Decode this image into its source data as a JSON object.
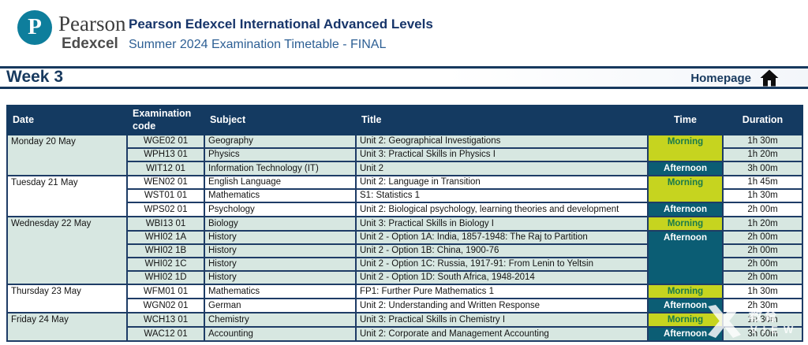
{
  "brand": {
    "name": "Pearson",
    "sub": "Edexcel",
    "monogram": "P"
  },
  "header": {
    "title": "Pearson Edexcel International Advanced Levels",
    "subtitle": "Summer 2024 Examination Timetable - FINAL"
  },
  "nav": {
    "week": "Week 3",
    "homepage": "Homepage"
  },
  "table": {
    "headers": [
      "Date",
      "Examination code",
      "Subject",
      "Title",
      "Time",
      "Duration"
    ],
    "days": [
      {
        "date": "Monday 20 May",
        "shade": "green",
        "rows": [
          {
            "code": "WGE02 01",
            "subject": "Geography",
            "title": "Unit 2: Geographical Investigations",
            "time": "Morning",
            "time_span": 2,
            "duration": "1h 30m"
          },
          {
            "code": "WPH13 01",
            "subject": "Physics",
            "title": "Unit 3: Practical Skills in Physics I",
            "duration": "1h 20m"
          },
          {
            "code": "WIT12 01",
            "subject": "Information Technology (IT)",
            "title": "Unit 2",
            "time": "Afternoon",
            "time_span": 1,
            "duration": "3h 00m"
          }
        ]
      },
      {
        "date": "Tuesday 21 May",
        "shade": "white",
        "rows": [
          {
            "code": "WEN02 01",
            "subject": "English Language",
            "title": "Unit 2: Language in Transition",
            "time": "Morning",
            "time_span": 2,
            "duration": "1h 45m"
          },
          {
            "code": "WST01 01",
            "subject": "Mathematics",
            "title": "S1: Statistics 1",
            "duration": "1h 30m"
          },
          {
            "code": "WPS02 01",
            "subject": "Psychology",
            "title": "Unit 2: Biological psychology, learning theories and development",
            "time": "Afternoon",
            "time_span": 1,
            "duration": "2h 00m"
          }
        ]
      },
      {
        "date": "Wednesday 22 May",
        "shade": "green",
        "rows": [
          {
            "code": "WBI13 01",
            "subject": "Biology",
            "title": "Unit 3: Practical Skills in Biology I",
            "time": "Morning",
            "time_span": 1,
            "duration": "1h 20m"
          },
          {
            "code": "WHI02 1A",
            "subject": "History",
            "title": "Unit 2 - Option 1A: India, 1857-1948: The Raj to Partition",
            "time": "Afternoon",
            "time_span": 4,
            "duration": "2h 00m"
          },
          {
            "code": "WHI02 1B",
            "subject": "History",
            "title": "Unit 2 - Option 1B: China, 1900-76",
            "duration": "2h 00m"
          },
          {
            "code": "WHI02 1C",
            "subject": "History",
            "title": "Unit 2 - Option 1C: Russia, 1917-91: From Lenin to Yeltsin",
            "duration": "2h 00m"
          },
          {
            "code": "WHI02 1D",
            "subject": "History",
            "title": "Unit 2 - Option 1D: South Africa, 1948-2014",
            "duration": "2h 00m"
          }
        ]
      },
      {
        "date": "Thursday 23 May",
        "shade": "white",
        "rows": [
          {
            "code": "WFM01 01",
            "subject": "Mathematics",
            "title": "FP1: Further Pure Mathematics 1",
            "time": "Morning",
            "time_span": 1,
            "duration": "1h 30m"
          },
          {
            "code": "WGN02 01",
            "subject": "German",
            "title": "Unit 2: Understanding and Written Response",
            "time": "Afternoon",
            "time_span": 1,
            "duration": "2h 30m"
          }
        ]
      },
      {
        "date": "Friday 24 May",
        "shade": "green",
        "rows": [
          {
            "code": "WCH13 01",
            "subject": "Chemistry",
            "title": "Unit 3: Practical Skills in Chemistry I",
            "time": "Morning",
            "time_span": 1,
            "duration": "1h 30m"
          },
          {
            "code": "WAC12 01",
            "subject": "Accounting",
            "title": "Unit 2: Corporate and Management Accounting",
            "time": "Afternoon",
            "time_span": 1,
            "duration": "3h 00m"
          }
        ]
      }
    ]
  },
  "colors": {
    "navy": "#17395e",
    "table_header_bg": "#143a61",
    "row_green": "#d7e7e1",
    "morning_bg": "#c6d41f",
    "morning_text": "#1a7a4a",
    "afternoon_bg": "#0b5d74",
    "logo_teal": "#0e7e9c"
  },
  "watermark": {
    "cjk": "教育",
    "latin": "VIEW"
  }
}
